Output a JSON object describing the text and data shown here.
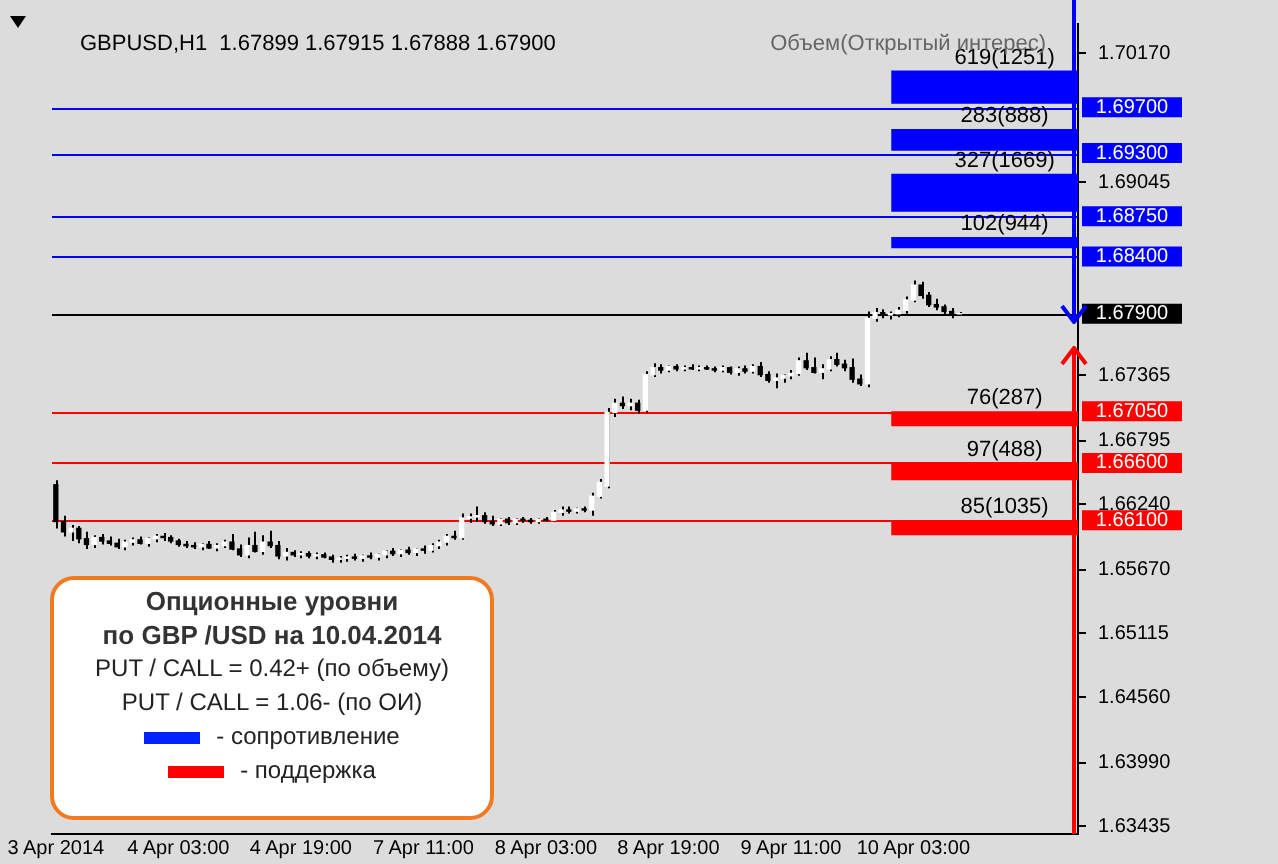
{
  "chart_data": {
    "type": "candlestick",
    "title": "GBPUSD,H1  1.67899 1.67915 1.67888 1.67900",
    "categories": [
      "3 Apr 2014",
      null,
      null,
      null,
      null,
      null,
      null,
      null,
      null,
      null,
      null,
      null,
      null,
      null,
      null,
      null,
      "4 Apr 03:00",
      null,
      null,
      null,
      null,
      null,
      null,
      null,
      null,
      null,
      null,
      null,
      null,
      null,
      null,
      null,
      "4 Apr 19:00",
      null,
      null,
      null,
      null,
      null,
      null,
      null,
      null,
      null,
      null,
      null,
      null,
      null,
      null,
      null,
      "7 Apr 11:00",
      null,
      null,
      null,
      null,
      null,
      null,
      null,
      null,
      null,
      null,
      null,
      null,
      null,
      null,
      null,
      "8 Apr 03:00",
      null,
      null,
      null,
      null,
      null,
      null,
      null,
      null,
      null,
      null,
      null,
      null,
      null,
      null,
      null,
      "8 Apr 19:00",
      null,
      null,
      null,
      null,
      null,
      null,
      null,
      null,
      null,
      null,
      null,
      null,
      null,
      null,
      null,
      "9 Apr 11:00",
      null,
      null,
      null,
      null,
      null,
      null,
      null,
      null,
      null,
      null,
      null,
      null,
      null,
      null,
      null,
      "10 Apr 03:00",
      null,
      null,
      null,
      null,
      null,
      null,
      null,
      null,
      null,
      null,
      null,
      null,
      null,
      null,
      null,
      null,
      null,
      null,
      null,
      null,
      null
    ],
    "ohlc": [
      [
        1.6641,
        1.6645,
        1.6603,
        1.6609
      ],
      [
        1.6609,
        1.6614,
        1.6596,
        1.66
      ],
      [
        1.66,
        1.6606,
        1.6592,
        1.6603
      ],
      [
        1.6603,
        1.6605,
        1.659,
        1.6594
      ],
      [
        1.6594,
        1.66,
        1.6585,
        1.6589
      ],
      [
        1.6589,
        1.6597,
        1.6586,
        1.6595
      ],
      [
        1.6595,
        1.6598,
        1.6589,
        1.6592
      ],
      [
        1.6592,
        1.6596,
        1.6588,
        1.659
      ],
      [
        1.659,
        1.6594,
        1.6585,
        1.6587
      ],
      [
        1.6587,
        1.6593,
        1.6584,
        1.6591
      ],
      [
        1.6591,
        1.6595,
        1.6588,
        1.6593
      ],
      [
        1.6593,
        1.6596,
        1.6589,
        1.659
      ],
      [
        1.659,
        1.6595,
        1.6587,
        1.6594
      ],
      [
        1.6594,
        1.6598,
        1.6591,
        1.6596
      ],
      [
        1.6596,
        1.6599,
        1.6592,
        1.6595
      ],
      [
        1.6595,
        1.6597,
        1.659,
        1.6592
      ],
      [
        1.6592,
        1.6594,
        1.6587,
        1.6589
      ],
      [
        1.6589,
        1.6592,
        1.6586,
        1.6588
      ],
      [
        1.6588,
        1.6591,
        1.6585,
        1.6587
      ],
      [
        1.6587,
        1.659,
        1.6584,
        1.6589
      ],
      [
        1.6589,
        1.6592,
        1.6585,
        1.6586
      ],
      [
        1.6586,
        1.659,
        1.6583,
        1.6588
      ],
      [
        1.6588,
        1.6593,
        1.6586,
        1.6591
      ],
      [
        1.6591,
        1.6598,
        1.6584,
        1.6585
      ],
      [
        1.6585,
        1.6589,
        1.6578,
        1.658
      ],
      [
        1.658,
        1.6595,
        1.6577,
        1.6588
      ],
      [
        1.6588,
        1.66,
        1.6582,
        1.6583
      ],
      [
        1.6583,
        1.6597,
        1.658,
        1.6591
      ],
      [
        1.6591,
        1.6601,
        1.6586,
        1.6588
      ],
      [
        1.6588,
        1.6592,
        1.6576,
        1.6579
      ],
      [
        1.6579,
        1.6586,
        1.6575,
        1.6582
      ],
      [
        1.6582,
        1.6584,
        1.6578,
        1.658
      ],
      [
        1.658,
        1.6583,
        1.6577,
        1.6581
      ],
      [
        1.6581,
        1.6583,
        1.6577,
        1.6579
      ],
      [
        1.6579,
        1.6582,
        1.6576,
        1.658
      ],
      [
        1.658,
        1.6582,
        1.6577,
        1.6578
      ],
      [
        1.6578,
        1.658,
        1.6573,
        1.6576
      ],
      [
        1.6576,
        1.6579,
        1.6573,
        1.6577
      ],
      [
        1.6577,
        1.658,
        1.6574,
        1.6578
      ],
      [
        1.6578,
        1.6581,
        1.6575,
        1.6577
      ],
      [
        1.6577,
        1.658,
        1.6574,
        1.6579
      ],
      [
        1.6579,
        1.6582,
        1.6576,
        1.6578
      ],
      [
        1.6578,
        1.6581,
        1.6575,
        1.658
      ],
      [
        1.658,
        1.6584,
        1.6577,
        1.6583
      ],
      [
        1.6583,
        1.6586,
        1.6579,
        1.6581
      ],
      [
        1.6581,
        1.6585,
        1.6578,
        1.6584
      ],
      [
        1.6584,
        1.6587,
        1.658,
        1.6582
      ],
      [
        1.6582,
        1.6586,
        1.6579,
        1.6585
      ],
      [
        1.6585,
        1.6588,
        1.6581,
        1.6584
      ],
      [
        1.6584,
        1.659,
        1.6582,
        1.6588
      ],
      [
        1.6588,
        1.6593,
        1.6585,
        1.6591
      ],
      [
        1.6591,
        1.6598,
        1.6588,
        1.6596
      ],
      [
        1.6596,
        1.6601,
        1.6593,
        1.6595
      ],
      [
        1.6595,
        1.6616,
        1.6593,
        1.6612
      ],
      [
        1.6612,
        1.6616,
        1.6608,
        1.6613
      ],
      [
        1.6613,
        1.6622,
        1.6609,
        1.6614
      ],
      [
        1.6614,
        1.6617,
        1.6607,
        1.6609
      ],
      [
        1.6609,
        1.6614,
        1.6605,
        1.6607
      ],
      [
        1.6607,
        1.6612,
        1.6605,
        1.6611
      ],
      [
        1.6611,
        1.6613,
        1.6606,
        1.6608
      ],
      [
        1.6608,
        1.6612,
        1.6606,
        1.6611
      ],
      [
        1.6611,
        1.6613,
        1.6608,
        1.661
      ],
      [
        1.661,
        1.6612,
        1.6607,
        1.6609
      ],
      [
        1.6609,
        1.6612,
        1.6607,
        1.6611
      ],
      [
        1.6611,
        1.6613,
        1.6609,
        1.661
      ],
      [
        1.661,
        1.6619,
        1.6609,
        1.6617
      ],
      [
        1.6617,
        1.6622,
        1.6614,
        1.6619
      ],
      [
        1.6619,
        1.6622,
        1.6616,
        1.6618
      ],
      [
        1.6618,
        1.6621,
        1.6616,
        1.662
      ],
      [
        1.662,
        1.6622,
        1.6617,
        1.6619
      ],
      [
        1.6619,
        1.6634,
        1.6614,
        1.6631
      ],
      [
        1.6631,
        1.6646,
        1.6629,
        1.6643
      ],
      [
        1.664,
        1.6708,
        1.6638,
        1.6704
      ],
      [
        1.6704,
        1.6716,
        1.67,
        1.6712
      ],
      [
        1.6712,
        1.6718,
        1.6707,
        1.671
      ],
      [
        1.671,
        1.6716,
        1.6706,
        1.6712
      ],
      [
        1.6712,
        1.6715,
        1.6703,
        1.6706
      ],
      [
        1.6706,
        1.674,
        1.6704,
        1.6737
      ],
      [
        1.6737,
        1.6747,
        1.6735,
        1.6743
      ],
      [
        1.6743,
        1.6746,
        1.6738,
        1.6741
      ],
      [
        1.6741,
        1.6745,
        1.6739,
        1.6744
      ],
      [
        1.6744,
        1.6746,
        1.674,
        1.6742
      ],
      [
        1.6742,
        1.6745,
        1.674,
        1.6743
      ],
      [
        1.6743,
        1.6746,
        1.6741,
        1.6742
      ],
      [
        1.6742,
        1.6745,
        1.674,
        1.6743
      ],
      [
        1.6743,
        1.6745,
        1.6741,
        1.6742
      ],
      [
        1.6742,
        1.6744,
        1.6739,
        1.6741
      ],
      [
        1.6741,
        1.6745,
        1.6739,
        1.6743
      ],
      [
        1.6743,
        1.6744,
        1.6737,
        1.6739
      ],
      [
        1.6739,
        1.6744,
        1.6736,
        1.6742
      ],
      [
        1.6742,
        1.6745,
        1.6738,
        1.674
      ],
      [
        1.674,
        1.6746,
        1.6738,
        1.6744
      ],
      [
        1.6744,
        1.6748,
        1.6735,
        1.6737
      ],
      [
        1.6737,
        1.674,
        1.673,
        1.6732
      ],
      [
        1.6732,
        1.6738,
        1.6725,
        1.6734
      ],
      [
        1.6734,
        1.6737,
        1.673,
        1.6736
      ],
      [
        1.6736,
        1.6741,
        1.6733,
        1.6738
      ],
      [
        1.6738,
        1.6752,
        1.6736,
        1.6749
      ],
      [
        1.6749,
        1.6756,
        1.6741,
        1.6743
      ],
      [
        1.6743,
        1.6752,
        1.6738,
        1.6739
      ],
      [
        1.6739,
        1.6746,
        1.6733,
        1.6742
      ],
      [
        1.6742,
        1.6753,
        1.674,
        1.675
      ],
      [
        1.675,
        1.6756,
        1.6744,
        1.6746
      ],
      [
        1.6746,
        1.675,
        1.674,
        1.6743
      ],
      [
        1.6743,
        1.6751,
        1.673,
        1.6733
      ],
      [
        1.6733,
        1.6737,
        1.6727,
        1.6729
      ],
      [
        1.6729,
        1.6792,
        1.6726,
        1.6786
      ],
      [
        1.6786,
        1.6795,
        1.6783,
        1.6791
      ],
      [
        1.6791,
        1.6794,
        1.6786,
        1.6789
      ],
      [
        1.6789,
        1.6792,
        1.6785,
        1.679
      ],
      [
        1.679,
        1.6796,
        1.6787,
        1.6793
      ],
      [
        1.6793,
        1.6805,
        1.679,
        1.6802
      ],
      [
        1.6802,
        1.6819,
        1.68,
        1.6815
      ],
      [
        1.6815,
        1.6818,
        1.6803,
        1.6806
      ],
      [
        1.6806,
        1.6809,
        1.6796,
        1.6798
      ],
      [
        1.6798,
        1.6803,
        1.6793,
        1.6796
      ],
      [
        1.6796,
        1.6798,
        1.6789,
        1.6792
      ],
      [
        1.6792,
        1.6795,
        1.6786,
        1.679
      ],
      [
        1.67899,
        1.67915,
        1.67888,
        1.679
      ],
      null,
      null,
      null,
      null,
      null,
      null,
      null,
      null,
      null,
      null,
      null,
      null,
      null,
      null,
      null
    ],
    "ylim": [
      1.63367,
      1.70425
    ],
    "yticks": [
      {
        "value": 1.7017,
        "label": "1.70170"
      },
      {
        "value": 1.69045,
        "label": "1.69045"
      },
      {
        "value": 1.67365,
        "label": "1.67365"
      },
      {
        "value": 1.66795,
        "label": "1.66795"
      },
      {
        "value": 1.6624,
        "label": "1.66240"
      },
      {
        "value": 1.6567,
        "label": "1.65670"
      },
      {
        "value": 1.65115,
        "label": "1.65115"
      },
      {
        "value": 1.6456,
        "label": "1.64560"
      },
      {
        "value": 1.6399,
        "label": "1.63990"
      },
      {
        "value": 1.63435,
        "label": "1.63435"
      }
    ],
    "ref_lines": [
      {
        "axis": "y",
        "value": 1.697,
        "label": "1.69700",
        "color": "#0000ff"
      },
      {
        "axis": "y",
        "value": 1.693,
        "label": "1.69300",
        "color": "#0000ff"
      },
      {
        "axis": "y",
        "value": 1.6875,
        "label": "1.68750",
        "color": "#0000ff"
      },
      {
        "axis": "y",
        "value": 1.684,
        "label": "1.68400",
        "color": "#0000ff"
      },
      {
        "axis": "y",
        "value": 1.679,
        "label": "1.67900",
        "color": "#000000"
      },
      {
        "axis": "y",
        "value": 1.6705,
        "label": "1.67050",
        "color": "#ff0000"
      },
      {
        "axis": "y",
        "value": 1.666,
        "label": "1.66600",
        "color": "#ff0000"
      },
      {
        "axis": "y",
        "value": 1.661,
        "label": "1.66100",
        "color": "#ff0000"
      }
    ],
    "bands": [
      {
        "axis": "y",
        "from": 1.6973,
        "to": 1.7002,
        "label": "619(1251)",
        "color": "#0000ff"
      },
      {
        "axis": "y",
        "from": 1.6932,
        "to": 1.6951,
        "label": "283(888)",
        "color": "#0000ff"
      },
      {
        "axis": "y",
        "from": 1.6879,
        "to": 1.6912,
        "label": "327(1669)",
        "color": "#0000ff"
      },
      {
        "axis": "y",
        "from": 1.6847,
        "to": 1.6857,
        "label": "102(944)",
        "color": "#0000ff"
      },
      {
        "axis": "y",
        "from": 1.6692,
        "to": 1.6705,
        "label": "76(287)",
        "color": "#ff0000"
      },
      {
        "axis": "y",
        "from": 1.6645,
        "to": 1.666,
        "label": "97(488)",
        "color": "#ff0000"
      },
      {
        "axis": "y",
        "from": 1.6597,
        "to": 1.661,
        "label": "85(1035)",
        "color": "#ff0000"
      }
    ],
    "annotations": [
      "Объем(Открытый интерес)",
      "Опционные уровни",
      "по GBP /USD на 10.04.2014",
      "PUT / CALL = 0.42+ (по объему)",
      "PUT / CALL = 1.06- (по ОИ)",
      "- сопротивление",
      "- поддержка"
    ],
    "grid": false,
    "legend": false
  }
}
